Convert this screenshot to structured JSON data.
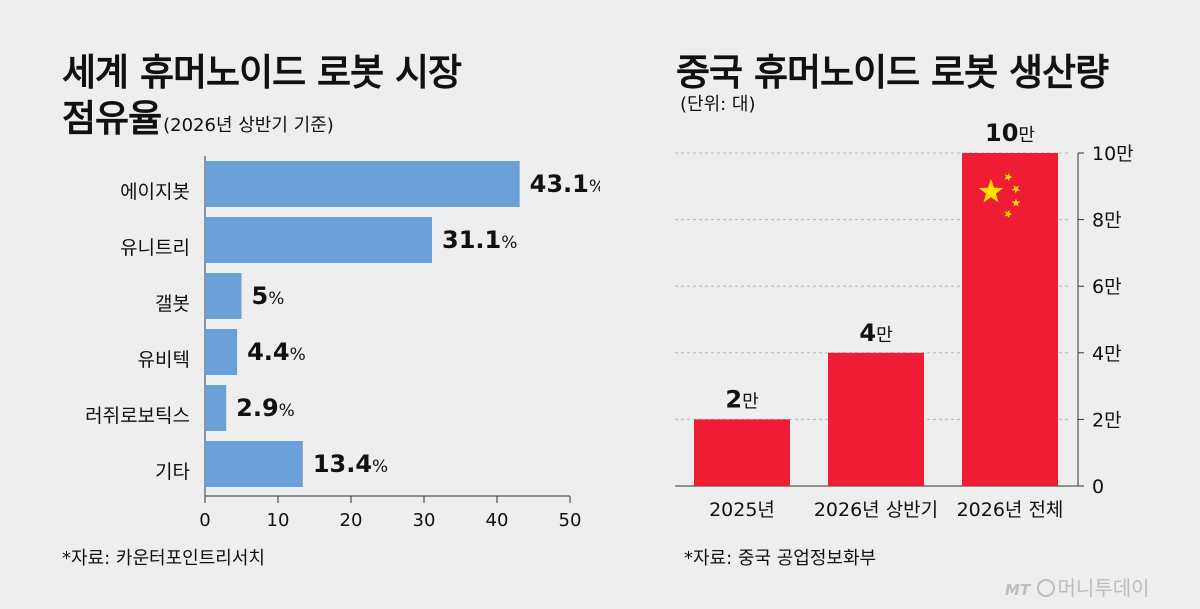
{
  "left": {
    "title_line1": "세계 휴머노이드 로봇 시장",
    "title_line2": "점유율",
    "subtitle": "(2026년 상반기 기준)",
    "source": "*자료: 카운터포인트리서치",
    "bar_color": "#6a9fd8"
  },
  "right": {
    "title": "중국 휴머노이드 로봇 생산량",
    "unit": "(단위: 대)",
    "source": "*자료: 중국 공업정보화부",
    "bar_color": "#ee1c35",
    "star_color": "#ffde00"
  },
  "logo": {
    "text": "머니투데이",
    "mark": "MT"
  },
  "chart_data": [
    {
      "type": "bar",
      "orientation": "horizontal",
      "title": "세계 휴머노이드 로봇 시장 점유율",
      "subtitle": "(2026년 상반기 기준)",
      "categories": [
        "에이지봇",
        "유니트리",
        "갤봇",
        "유비텍",
        "러쥐로보틱스",
        "기타"
      ],
      "values": [
        43.1,
        31.1,
        5,
        4.4,
        2.9,
        13.4
      ],
      "value_labels": [
        "43.1",
        "31.1",
        "5",
        "4.4",
        "2.9",
        "13.4"
      ],
      "value_suffix": "%",
      "xlim": [
        0,
        50
      ],
      "xticks": [
        "0",
        "10",
        "20",
        "30",
        "40",
        "50"
      ],
      "grid": false
    },
    {
      "type": "bar",
      "orientation": "vertical",
      "title": "중국 휴머노이드 로봇 생산량",
      "unit": "(단위: 대)",
      "categories": [
        "2025년",
        "2026년 상반기",
        "2026년 전체"
      ],
      "values": [
        20000,
        40000,
        100000
      ],
      "value_labels": [
        "2",
        "4",
        "10"
      ],
      "value_suffix": "만",
      "ylim": [
        0,
        100000
      ],
      "yticks": [
        "0",
        "2만",
        "4만",
        "6만",
        "8만",
        "10만"
      ],
      "y_axis_position": "right",
      "grid": true
    }
  ]
}
